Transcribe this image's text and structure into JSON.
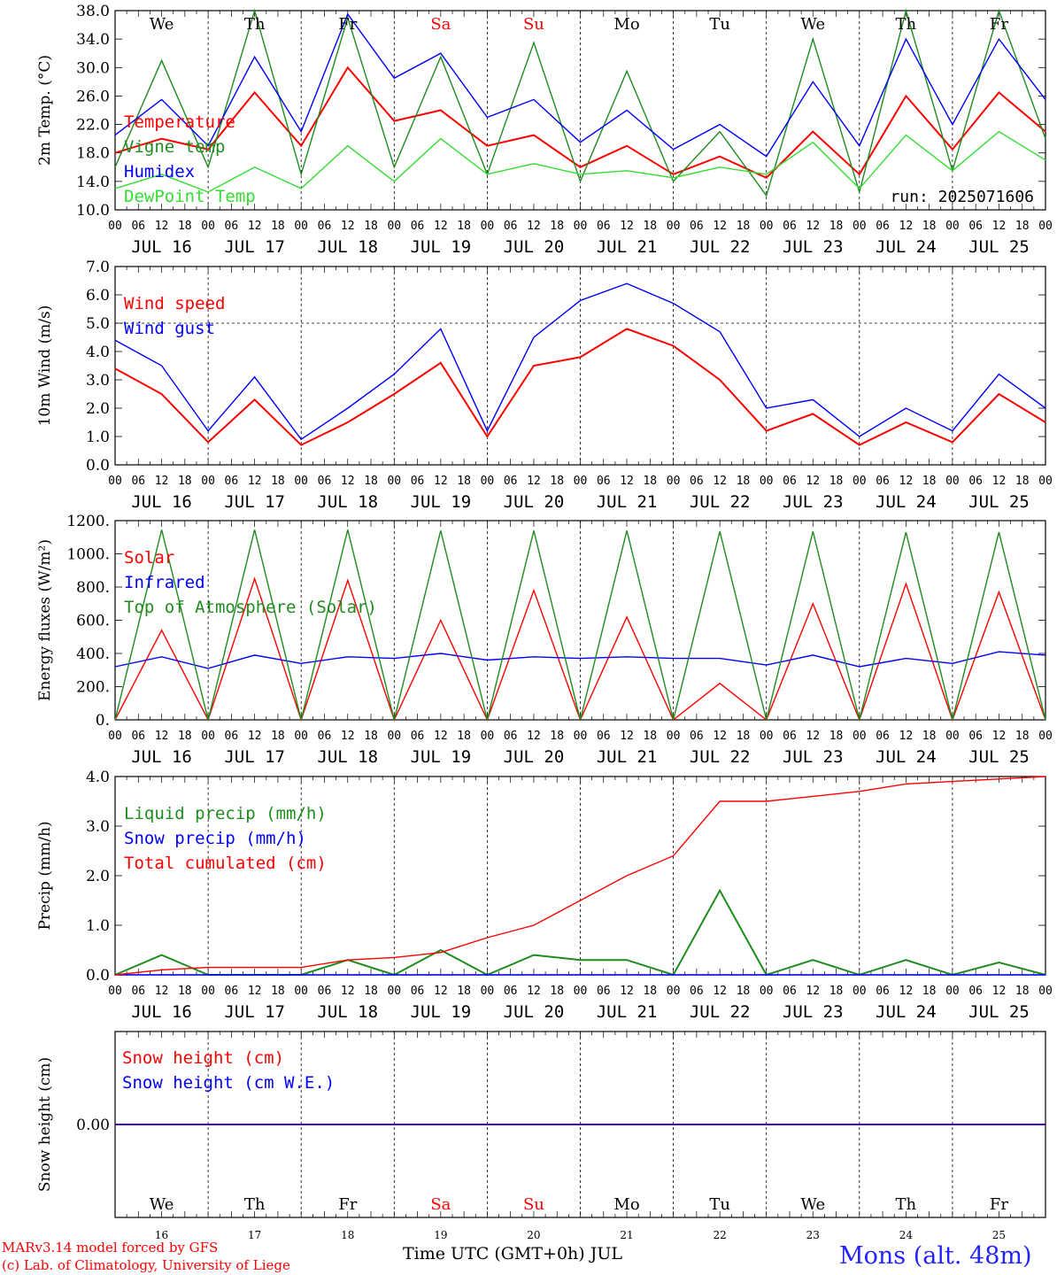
{
  "footer": {
    "credit_line1": "MARv3.14 model forced by GFS",
    "credit_line2": "(c) Lab. of Climatology, University of Liege",
    "x_title": "Time UTC (GMT+0h) JUL",
    "station": "Mons (alt. 48m)"
  },
  "colors": {
    "red": "#ff0000",
    "green": "#1e8c1e",
    "blue": "#0000ff",
    "lightgreen": "#33dd33",
    "weekend": "#ff0000"
  },
  "days": [
    {
      "date": "JUL 16",
      "num": "16",
      "weekday": "We",
      "weekend": false
    },
    {
      "date": "JUL 17",
      "num": "17",
      "weekday": "Th",
      "weekend": false
    },
    {
      "date": "JUL 18",
      "num": "18",
      "weekday": "Fr",
      "weekend": false
    },
    {
      "date": "JUL 19",
      "num": "19",
      "weekday": "Sa",
      "weekend": true
    },
    {
      "date": "JUL 20",
      "num": "20",
      "weekday": "Su",
      "weekend": true
    },
    {
      "date": "JUL 21",
      "num": "21",
      "weekday": "Mo",
      "weekend": false
    },
    {
      "date": "JUL 22",
      "num": "22",
      "weekday": "Tu",
      "weekend": false
    },
    {
      "date": "JUL 23",
      "num": "23",
      "weekday": "We",
      "weekend": false
    },
    {
      "date": "JUL 24",
      "num": "24",
      "weekday": "Th",
      "weekend": false
    },
    {
      "date": "JUL 25",
      "num": "25",
      "weekday": "Fr",
      "weekend": false
    }
  ],
  "hour_ticks": [
    "00",
    "06",
    "12",
    "18"
  ],
  "chart_data": [
    {
      "type": "line",
      "ylabel": "2m Temp. (°C)",
      "ylim": [
        10,
        38
      ],
      "yticks": [
        "10.0",
        "14.0",
        "18.0",
        "22.0",
        "26.0",
        "30.0",
        "34.0",
        "38.0"
      ],
      "ytick_values": [
        10,
        14,
        18,
        22,
        26,
        30,
        34,
        38
      ],
      "annotation": "run: 2025071606",
      "x": [
        "JUL 16 00",
        "JUL 16 12",
        "JUL 17 00",
        "JUL 17 12",
        "JUL 18 00",
        "JUL 18 12",
        "JUL 19 00",
        "JUL 19 12",
        "JUL 20 00",
        "JUL 20 12",
        "JUL 21 00",
        "JUL 21 12",
        "JUL 22 00",
        "JUL 22 12",
        "JUL 23 00",
        "JUL 23 12",
        "JUL 24 00",
        "JUL 24 12",
        "JUL 25 00",
        "JUL 25 12",
        "JUL 26 00"
      ],
      "series": [
        {
          "name": "Temperature",
          "color": "#ff0000",
          "values": [
            18.0,
            20.0,
            18.5,
            26.5,
            19.0,
            30.0,
            22.5,
            24.0,
            19.0,
            20.5,
            16.0,
            19.0,
            15.0,
            17.5,
            14.5,
            21.0,
            15.0,
            26.0,
            18.5,
            26.5,
            21.0
          ]
        },
        {
          "name": "Vigne temp",
          "color": "#1e8c1e",
          "values": [
            16.0,
            31.0,
            16.0,
            38.0,
            15.0,
            37.0,
            16.0,
            31.5,
            15.0,
            33.5,
            14.0,
            29.5,
            14.0,
            21.0,
            12.0,
            34.0,
            12.5,
            38.0,
            15.5,
            38.0,
            20.0
          ]
        },
        {
          "name": "Humidex",
          "color": "#0000ff",
          "values": [
            20.5,
            25.5,
            19.0,
            31.5,
            21.0,
            37.5,
            28.5,
            32.0,
            23.0,
            25.5,
            19.5,
            24.0,
            18.5,
            22.0,
            17.5,
            28.0,
            19.0,
            34.0,
            22.0,
            34.0,
            25.5
          ]
        },
        {
          "name": "DewPoint Temp",
          "color": "#33dd33",
          "values": [
            13.0,
            15.0,
            12.5,
            16.0,
            13.0,
            19.0,
            14.0,
            20.0,
            15.0,
            16.5,
            15.0,
            15.5,
            14.5,
            16.0,
            15.0,
            19.5,
            13.0,
            20.5,
            15.5,
            21.0,
            17.0
          ]
        }
      ]
    },
    {
      "type": "line",
      "ylabel": "10m Wind (m/s)",
      "ylim": [
        0,
        7
      ],
      "yticks": [
        "0.0",
        "1.0",
        "2.0",
        "3.0",
        "4.0",
        "5.0",
        "6.0",
        "7.0"
      ],
      "ytick_values": [
        0,
        1,
        2,
        3,
        4,
        5,
        6,
        7
      ],
      "reference_line": 5.0,
      "x": [
        "JUL 16 00",
        "JUL 16 12",
        "JUL 17 00",
        "JUL 17 12",
        "JUL 18 00",
        "JUL 18 12",
        "JUL 19 00",
        "JUL 19 12",
        "JUL 20 00",
        "JUL 20 12",
        "JUL 21 00",
        "JUL 21 12",
        "JUL 22 00",
        "JUL 22 12",
        "JUL 23 00",
        "JUL 23 12",
        "JUL 24 00",
        "JUL 24 12",
        "JUL 25 00",
        "JUL 25 12",
        "JUL 26 00"
      ],
      "series": [
        {
          "name": "Wind speed",
          "color": "#ff0000",
          "values": [
            3.4,
            2.5,
            0.8,
            2.3,
            0.7,
            1.5,
            2.5,
            3.6,
            1.0,
            3.5,
            3.8,
            4.8,
            4.2,
            3.0,
            1.2,
            1.8,
            0.7,
            1.5,
            0.8,
            2.5,
            1.5
          ]
        },
        {
          "name": "Wind gust",
          "color": "#0000ff",
          "values": [
            4.4,
            3.5,
            1.2,
            3.1,
            0.9,
            2.0,
            3.2,
            4.8,
            1.2,
            4.5,
            5.8,
            6.4,
            5.7,
            4.7,
            2.0,
            2.3,
            1.0,
            2.0,
            1.2,
            3.2,
            2.0
          ]
        }
      ]
    },
    {
      "type": "line",
      "ylabel": "Energy fluxes (W/m²)",
      "ylim": [
        0,
        1200
      ],
      "yticks": [
        "0.",
        "200.",
        "400.",
        "600.",
        "800.",
        "1000.",
        "1200."
      ],
      "ytick_values": [
        0,
        200,
        400,
        600,
        800,
        1000,
        1200
      ],
      "x": [
        "JUL 16 00",
        "JUL 16 12",
        "JUL 17 00",
        "JUL 17 12",
        "JUL 18 00",
        "JUL 18 12",
        "JUL 19 00",
        "JUL 19 12",
        "JUL 20 00",
        "JUL 20 12",
        "JUL 21 00",
        "JUL 21 12",
        "JUL 22 00",
        "JUL 22 12",
        "JUL 23 00",
        "JUL 23 12",
        "JUL 24 00",
        "JUL 24 12",
        "JUL 25 00",
        "JUL 25 12",
        "JUL 26 00"
      ],
      "series": [
        {
          "name": "Solar",
          "color": "#ff0000",
          "values": [
            0,
            540,
            0,
            850,
            0,
            840,
            0,
            600,
            0,
            780,
            0,
            620,
            0,
            220,
            0,
            700,
            0,
            820,
            0,
            770,
            0
          ]
        },
        {
          "name": "Infrared",
          "color": "#0000ff",
          "values": [
            320,
            380,
            310,
            390,
            340,
            380,
            370,
            400,
            360,
            380,
            370,
            380,
            370,
            370,
            330,
            390,
            320,
            370,
            340,
            410,
            390
          ]
        },
        {
          "name": "Top of Atmosphere (Solar)",
          "color": "#1e8c1e",
          "values": [
            0,
            1145,
            0,
            1145,
            0,
            1145,
            0,
            1140,
            0,
            1140,
            0,
            1140,
            0,
            1135,
            0,
            1135,
            0,
            1130,
            0,
            1130,
            0
          ]
        }
      ]
    },
    {
      "type": "line",
      "ylabel": "Precip (mm/h)",
      "ylim": [
        0,
        4
      ],
      "yticks": [
        "0.0",
        "1.0",
        "2.0",
        "3.0",
        "4.0"
      ],
      "ytick_values": [
        0,
        1,
        2,
        3,
        4
      ],
      "x": [
        "JUL 16 00",
        "JUL 16 12",
        "JUL 17 00",
        "JUL 17 12",
        "JUL 18 00",
        "JUL 18 12",
        "JUL 19 00",
        "JUL 19 12",
        "JUL 20 00",
        "JUL 20 12",
        "JUL 21 00",
        "JUL 21 12",
        "JUL 22 00",
        "JUL 22 12",
        "JUL 23 00",
        "JUL 23 12",
        "JUL 24 00",
        "JUL 24 12",
        "JUL 25 00",
        "JUL 25 12",
        "JUL 26 00"
      ],
      "series": [
        {
          "name": "Liquid precip (mm/h)",
          "color": "#1e8c1e",
          "values": [
            0.0,
            0.4,
            0.0,
            0.0,
            0.0,
            0.3,
            0.0,
            0.5,
            0.0,
            0.4,
            0.3,
            0.3,
            0.0,
            1.7,
            0.0,
            0.3,
            0.0,
            0.3,
            0.0,
            0.25,
            0.0
          ]
        },
        {
          "name": "Snow precip (mm/h)",
          "color": "#0000ff",
          "values": [
            0,
            0,
            0,
            0,
            0,
            0,
            0,
            0,
            0,
            0,
            0,
            0,
            0,
            0,
            0,
            0,
            0,
            0,
            0,
            0,
            0
          ]
        },
        {
          "name": "Total cumulated (cm)",
          "color": "#ff0000",
          "values": [
            0.0,
            0.1,
            0.15,
            0.15,
            0.15,
            0.3,
            0.35,
            0.45,
            0.75,
            1.0,
            1.5,
            2.0,
            2.4,
            3.5,
            3.5,
            3.6,
            3.7,
            3.85,
            3.9,
            3.95,
            4.0
          ]
        }
      ]
    },
    {
      "type": "line",
      "ylabel": "Snow height (cm)",
      "ylim": [
        -1,
        1
      ],
      "yticks": [
        "0.00"
      ],
      "ytick_values": [
        0
      ],
      "x": [
        "JUL 16 00",
        "JUL 26 00"
      ],
      "series": [
        {
          "name": "Snow height (cm)",
          "color": "#ff0000",
          "values": [
            0,
            0
          ]
        },
        {
          "name": "Snow height (cm W.E.)",
          "color": "#0000ff",
          "values": [
            0,
            0
          ]
        }
      ]
    }
  ]
}
